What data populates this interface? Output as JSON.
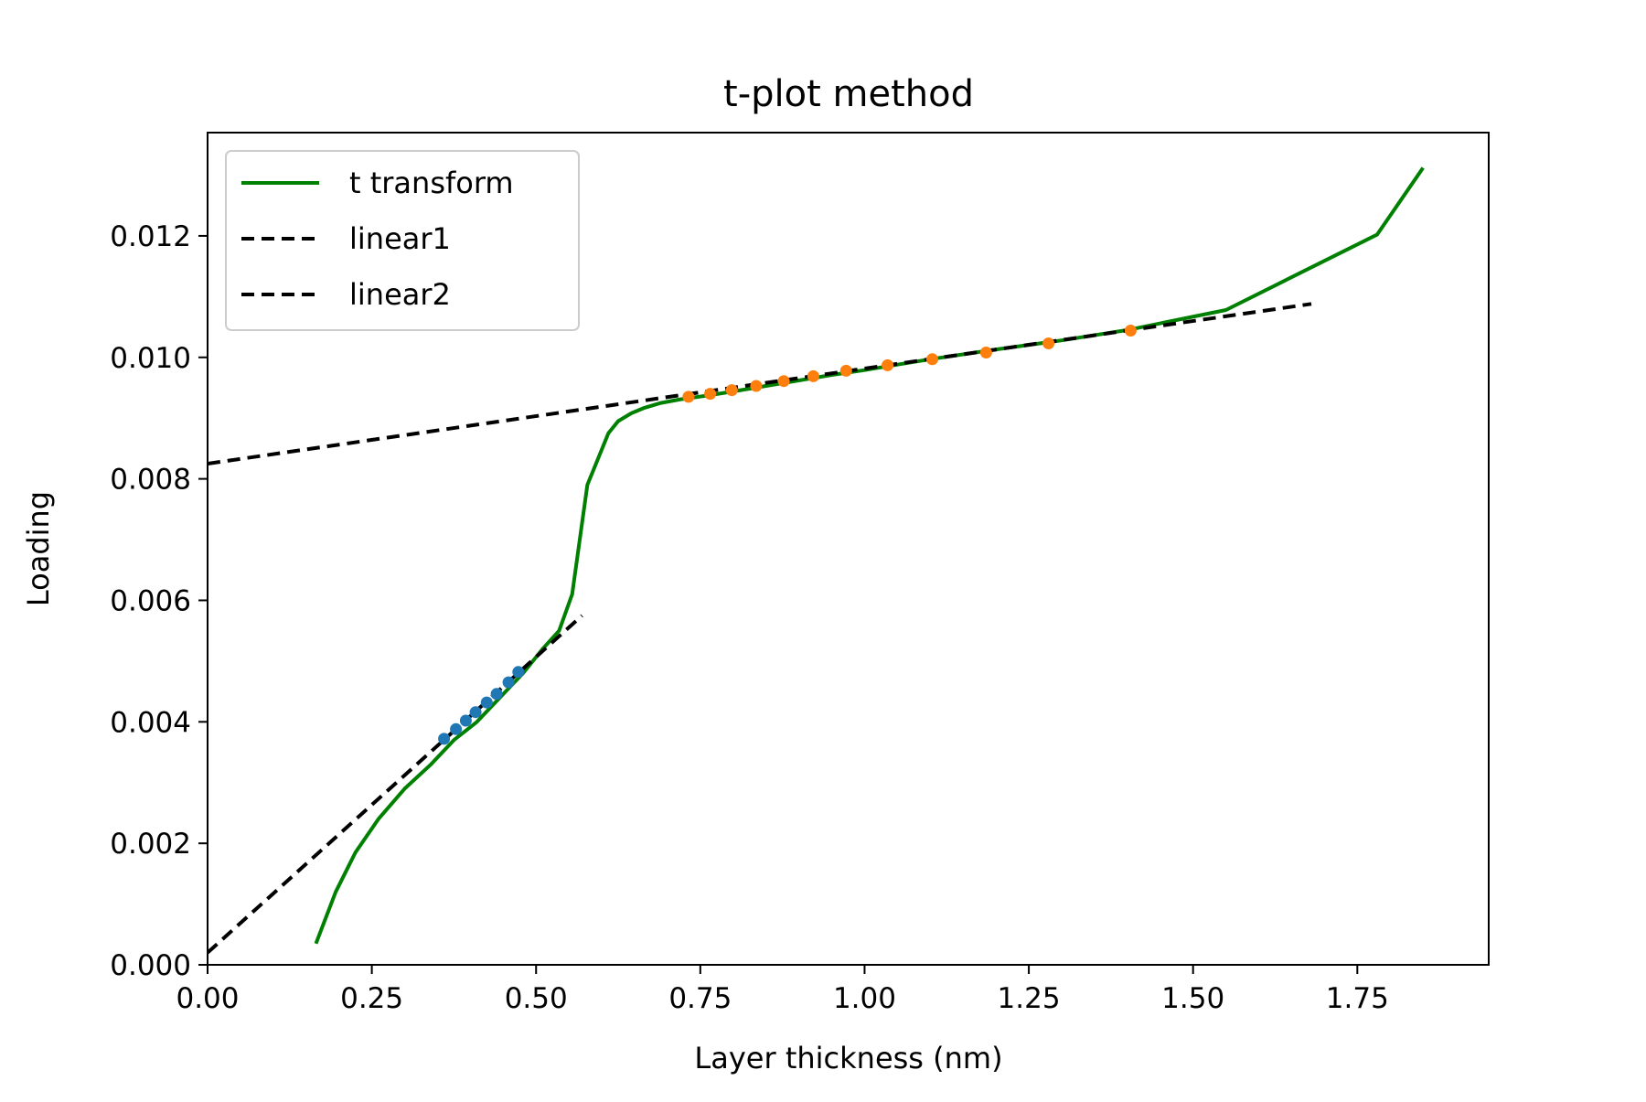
{
  "chart_data": {
    "type": "line",
    "title": "t-plot method",
    "xlabel": "Layer thickness (nm)",
    "ylabel": "Loading",
    "xlim": [
      0,
      1.95
    ],
    "ylim": [
      0,
      0.0137
    ],
    "xticks": [
      0,
      0.25,
      0.5,
      0.75,
      1.0,
      1.25,
      1.5,
      1.75
    ],
    "xtick_labels": [
      "0.00",
      "0.25",
      "0.50",
      "0.75",
      "1.00",
      "1.25",
      "1.50",
      "1.75"
    ],
    "yticks": [
      0,
      0.002,
      0.004,
      0.006,
      0.008,
      0.01,
      0.012
    ],
    "ytick_labels": [
      "0.000",
      "0.002",
      "0.004",
      "0.006",
      "0.008",
      "0.010",
      "0.012"
    ],
    "grid": false,
    "legend_position": "top-left",
    "series": [
      {
        "name": "t transform",
        "style": "solid",
        "color": "#008000",
        "x": [
          0.165,
          0.195,
          0.225,
          0.26,
          0.3,
          0.34,
          0.375,
          0.41,
          0.445,
          0.48,
          0.51,
          0.535,
          0.555,
          0.578,
          0.61,
          0.625,
          0.645,
          0.665,
          0.69,
          0.72,
          0.76,
          0.8,
          0.85,
          0.9,
          0.95,
          1.0,
          1.05,
          1.1,
          1.2,
          1.3,
          1.4,
          1.55,
          1.65,
          1.78,
          1.85
        ],
        "y": [
          0.00035,
          0.0012,
          0.00185,
          0.0024,
          0.0029,
          0.0033,
          0.0037,
          0.004,
          0.0044,
          0.0048,
          0.0052,
          0.0055,
          0.0061,
          0.0079,
          0.00875,
          0.00895,
          0.00908,
          0.00917,
          0.00925,
          0.00931,
          0.00937,
          0.00944,
          0.00953,
          0.00962,
          0.00971,
          0.00979,
          0.00988,
          0.00997,
          0.01013,
          0.01028,
          0.01045,
          0.01078,
          0.01132,
          0.01202,
          0.01312
        ]
      },
      {
        "name": "linear1",
        "style": "dashed",
        "color": "#000000",
        "x": [
          0.0,
          0.57
        ],
        "y": [
          0.0002,
          0.00575
        ]
      },
      {
        "name": "linear2",
        "style": "dashed",
        "color": "#000000",
        "x": [
          0.0,
          1.68
        ],
        "y": [
          0.00825,
          0.01088
        ]
      }
    ],
    "point_sets": [
      {
        "color": "#1f77b4",
        "x": [
          0.36,
          0.378,
          0.393,
          0.408,
          0.425,
          0.44,
          0.458,
          0.473
        ],
        "y": [
          0.00372,
          0.00388,
          0.00402,
          0.00416,
          0.00432,
          0.00446,
          0.00465,
          0.00482
        ]
      },
      {
        "color": "#ff7f0e",
        "x": [
          0.732,
          0.765,
          0.798,
          0.835,
          0.877,
          0.922,
          0.972,
          1.035,
          1.103,
          1.185,
          1.28,
          1.405
        ],
        "y": [
          0.00935,
          0.0094,
          0.00946,
          0.00953,
          0.00961,
          0.00969,
          0.00978,
          0.00987,
          0.00997,
          0.01008,
          0.01023,
          0.01044
        ]
      }
    ]
  }
}
